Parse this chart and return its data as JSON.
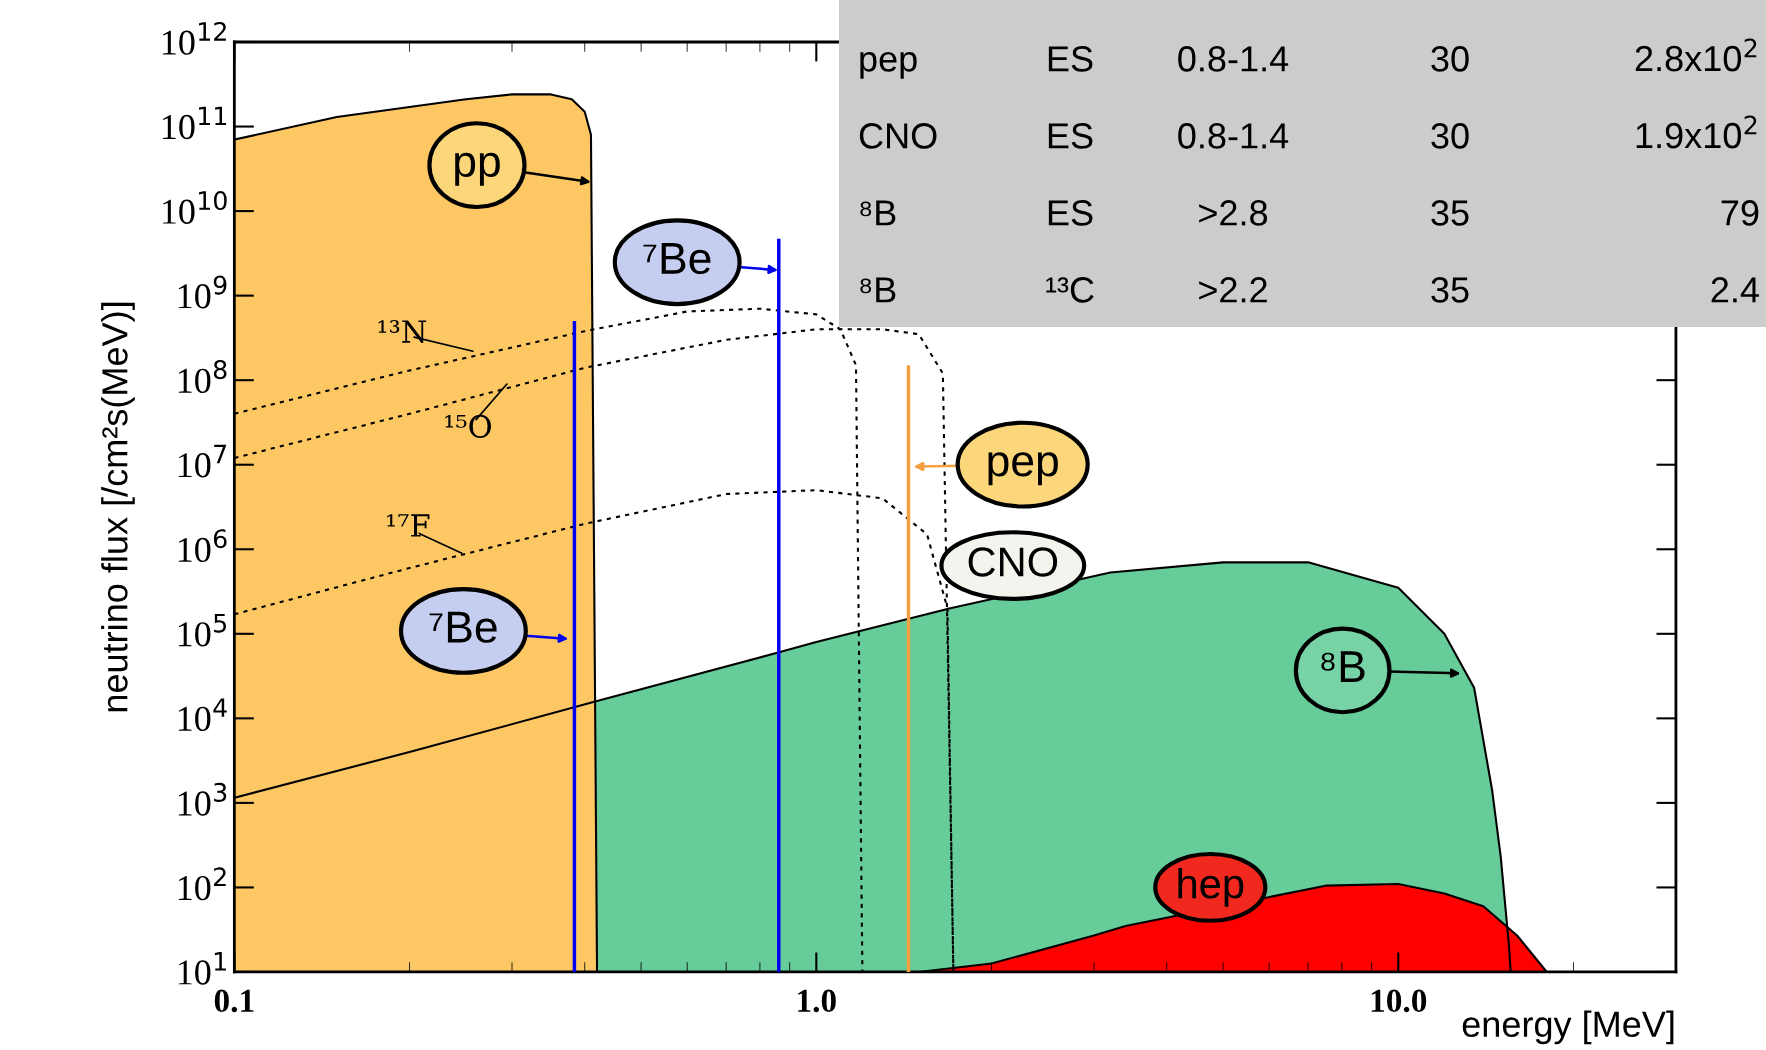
{
  "chart_data": {
    "type": "area",
    "xlabel": "energy [MeV]",
    "ylabel": "neutrino flux [/cm²s(MeV)]",
    "log": "xy",
    "xlim": [
      0.1,
      30
    ],
    "ylim": [
      10,
      1000000000000.0
    ],
    "xticks": [
      {
        "value": 0.1,
        "label": "0.1"
      },
      {
        "value": 1,
        "label": "1.0"
      },
      {
        "value": 10,
        "label": "10.0"
      }
    ],
    "yticks": [
      {
        "value": 10,
        "label": "10$^{1}$"
      },
      {
        "value": 100,
        "label": "10$^{2}$"
      },
      {
        "value": 1000,
        "label": "10$^{3}$"
      },
      {
        "value": 10000.0,
        "label": "10$^{4}$"
      },
      {
        "value": 100000.0,
        "label": "10$^{5}$"
      },
      {
        "value": 1000000.0,
        "label": "10$^{6}$"
      },
      {
        "value": 10000000.0,
        "label": "10$^{7}$"
      },
      {
        "value": 100000000.0,
        "label": "10$^{8}$"
      },
      {
        "value": 1000000000.0,
        "label": "10$^{9}$"
      },
      {
        "value": 10000000000.0,
        "label": "10$^{10}$"
      },
      {
        "value": 100000000000.0,
        "label": "10$^{11}$"
      },
      {
        "value": 1000000000000.0,
        "label": "10$^{12}$"
      }
    ],
    "grid": false,
    "series": [
      {
        "color": "#66cc99",
        "x": [
          0.1,
          0.2,
          0.42,
          0.86,
          1.0,
          1.7,
          3.2,
          5,
          7,
          10,
          12,
          13.5,
          14.5,
          15,
          15.5,
          15.6
        ],
        "values": [
          1150,
          4000,
          16000,
          60000,
          80000,
          200000,
          530000,
          700000,
          700000,
          350000,
          100000,
          23000,
          1400,
          230,
          20,
          10
        ]
      },
      {
        "color": "#fdc864",
        "x": [
          0.1,
          0.15,
          0.2,
          0.25,
          0.3,
          0.35,
          0.38,
          0.4,
          0.41,
          0.42
        ],
        "values": [
          70000000000.0,
          130000000000.0,
          170000000000.0,
          210000000000.0,
          240000000000.0,
          240000000000.0,
          210000000000.0,
          150000000000.0,
          80000000000.0,
          10
        ]
      },
      {
        "color": "#ff0000",
        "x": [
          1.5,
          2,
          3,
          3.4,
          7.5,
          10,
          12,
          14,
          16,
          18
        ],
        "values": [
          10,
          12.6,
          27,
          35,
          105,
          110,
          85,
          60,
          27,
          10
        ]
      },
      {
        "type": "line",
        "color": "#000000",
        "line_style": "dotted",
        "x": [
          0.1,
          0.2,
          0.4,
          0.6,
          0.8,
          1.0,
          1.1,
          1.17,
          1.2
        ],
        "values": [
          40000000.0,
          130000000.0,
          380000000.0,
          650000000.0,
          700000000.0,
          600000000.0,
          400000000.0,
          150000000.0,
          10
        ]
      },
      {
        "type": "line",
        "color": "#000000",
        "line_style": "dotted",
        "x": [
          0.1,
          0.2,
          0.4,
          0.7,
          1.0,
          1.3,
          1.5,
          1.65,
          1.72
        ],
        "values": [
          12000000.0,
          40000000.0,
          140000000.0,
          300000000.0,
          400000000.0,
          400000000.0,
          350000000.0,
          120000000.0,
          10
        ]
      },
      {
        "type": "line",
        "color": "#000000",
        "line_style": "dotted",
        "x": [
          0.1,
          0.2,
          0.4,
          0.7,
          1.0,
          1.3,
          1.55,
          1.68,
          1.72
        ],
        "values": [
          170000.0,
          600000.0,
          2000000.0,
          4500000.0,
          5000000.0,
          4000000.0,
          1500000.0,
          200000.0,
          10
        ]
      },
      {
        "type": "bar",
        "color": "#0000ee",
        "x": [
          0.384,
          0.862
        ],
        "values": [
          500000000.0,
          4700000000.0
        ]
      },
      {
        "type": "bar",
        "color": "#f5a040",
        "x": [
          1.44
        ],
        "values": [
          150000000.0
        ]
      }
    ],
    "annotations": [
      {
        "text": "pp",
        "x": 0.41,
        "y": 22000000000.0
      },
      {
        "text": "⁷Be",
        "x": 0.86,
        "y": 2000000000.0
      },
      {
        "text": "¹³N",
        "x": 0.257,
        "y": 220000000.0
      },
      {
        "text": "¹⁵O",
        "x": 0.294,
        "y": 90000000.0
      },
      {
        "text": "¹⁷F",
        "x": 0.246,
        "y": 900000.0
      },
      {
        "text": "⁷Be",
        "x": 0.375,
        "y": 87000.0
      },
      {
        "text": "pep",
        "x": 1.47,
        "y": 9500000.0
      },
      {
        "text": "⁸B",
        "x": 12.8,
        "y": 34000.0
      },
      "CNO",
      "hep",
      "pep",
      "ES",
      "0.8-1.4",
      "30",
      "2.8x10$^{2}$",
      "CNO",
      "ES",
      "0.8-1.4",
      "30",
      "1.9x10$^{2}$",
      "⁸B",
      "ES",
      ">2.8",
      "35",
      "79",
      "⁸B",
      "¹³C",
      ">2.2",
      "35",
      "2.4"
    ]
  }
}
